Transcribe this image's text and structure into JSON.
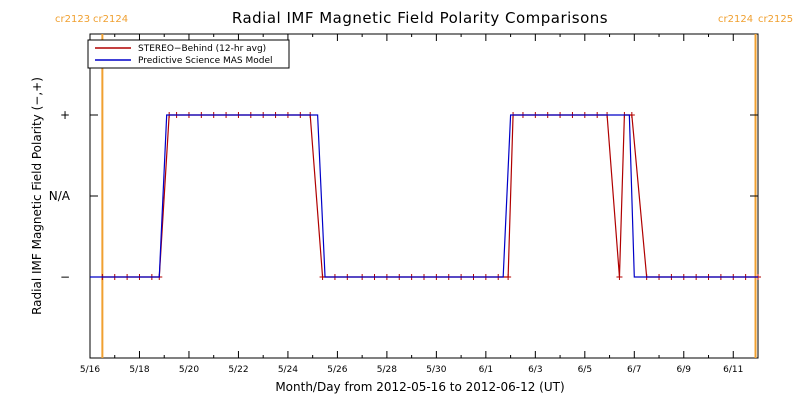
{
  "chart_data": {
    "type": "line",
    "title": "Radial IMF Magnetic Field Polarity Comparisons",
    "xlabel": "Month/Day from 2012-05-16 to 2012-06-12 (UT)",
    "ylabel": "Radial IMF Magnetic Field Polarity (−,+)",
    "x_ticks": [
      "5/16",
      "5/18",
      "5/20",
      "5/22",
      "5/24",
      "5/26",
      "5/28",
      "5/30",
      "6/1",
      "6/3",
      "6/5",
      "6/7",
      "6/9",
      "6/11"
    ],
    "y_ticks": [
      {
        "value": -1,
        "label": "−"
      },
      {
        "value": 0,
        "label": "N/A"
      },
      {
        "value": 1,
        "label": "+"
      }
    ],
    "xlim_days": [
      0,
      27
    ],
    "ylim": [
      -2,
      2
    ],
    "carrington_labels_left": [
      "cr2123",
      "cr2124"
    ],
    "carrington_labels_right": [
      "cr2124",
      "cr2125"
    ],
    "carrington_lines_days": [
      0.5,
      26.9
    ],
    "colors": {
      "stereo": "#b00000",
      "mas": "#0000c8",
      "carrington": "#f0a030"
    },
    "series": [
      {
        "name": "STEREO−Behind (12-hr avg)",
        "color": "#b00000",
        "markers": true,
        "x": [
          0.5,
          1,
          1.5,
          2,
          2.5,
          2.8,
          3.2,
          3.5,
          4,
          4.5,
          5,
          5.5,
          6,
          6.5,
          7,
          7.5,
          8,
          8.5,
          8.9,
          9.4,
          9.9,
          10.4,
          11,
          11.5,
          12,
          12.5,
          13,
          13.5,
          14,
          14.5,
          15,
          15.5,
          16,
          16.5,
          16.9,
          17.1,
          17.5,
          18,
          18.5,
          19,
          19.5,
          20,
          20.5,
          20.9,
          21.4,
          21.6,
          21.9,
          22.5,
          23,
          23.5,
          24,
          24.5,
          25,
          25.5,
          26,
          26.5,
          27
        ],
        "y": [
          -1,
          -1,
          -1,
          -1,
          -1,
          -1,
          1,
          1,
          1,
          1,
          1,
          1,
          1,
          1,
          1,
          1,
          1,
          1,
          1,
          -1,
          -1,
          -1,
          -1,
          -1,
          -1,
          -1,
          -1,
          -1,
          -1,
          -1,
          -1,
          -1,
          -1,
          -1,
          -1,
          1,
          1,
          1,
          1,
          1,
          1,
          1,
          1,
          1,
          -1,
          1,
          1,
          -1,
          -1,
          -1,
          -1,
          -1,
          -1,
          -1,
          -1,
          -1,
          -1
        ]
      },
      {
        "name": "Predictive Science MAS Model",
        "color": "#0000c8",
        "markers": false,
        "x": [
          0,
          2.8,
          3.1,
          9.2,
          9.5,
          16.7,
          17.0,
          21.8,
          22.0,
          27
        ],
        "y": [
          -1,
          -1,
          1,
          1,
          -1,
          -1,
          1,
          1,
          -1,
          -1
        ]
      }
    ],
    "legend_position": "top-left",
    "grid": false
  }
}
